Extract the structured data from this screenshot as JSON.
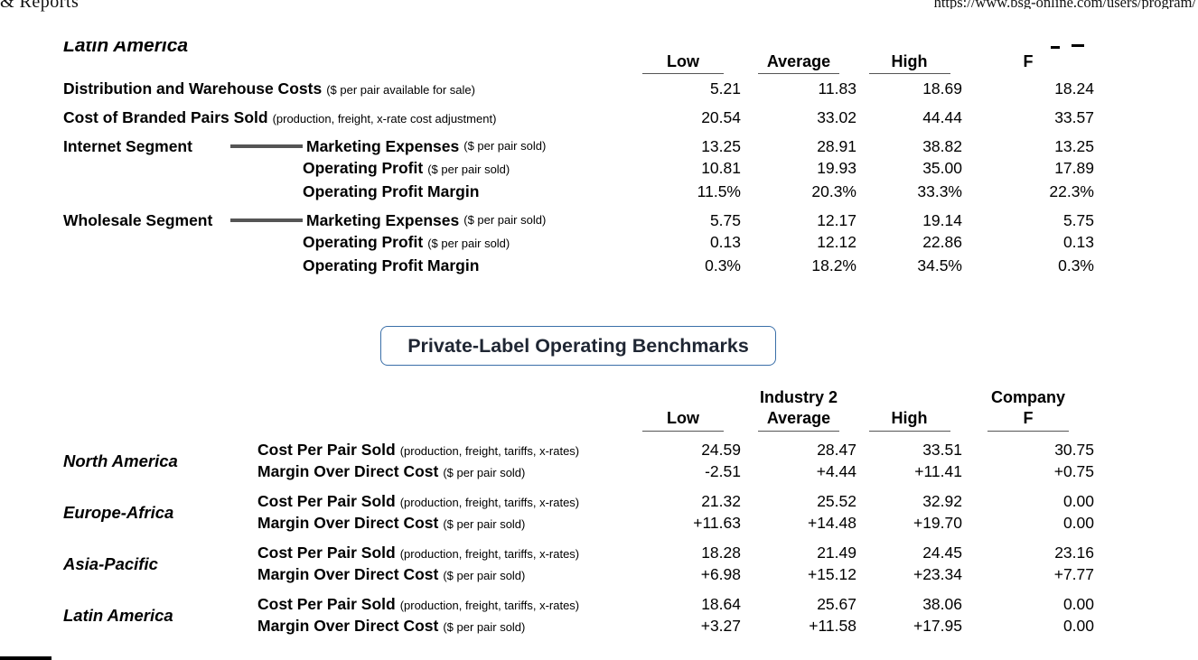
{
  "page_header": {
    "left_fragment": "& Reports",
    "right_fragment": "https://www.bsg-online.com/users/program/"
  },
  "colors": {
    "section_box_border": "#3a6fa8",
    "connector_line": "#555555"
  },
  "branded_benchmarks": {
    "region_title": "Latin America",
    "col_headers": {
      "low": "Low",
      "average": "Average",
      "high": "High",
      "company": "F"
    },
    "rows": [
      {
        "label": "Distribution and Warehouse Costs",
        "note": "($ per pair available for sale)",
        "low": "5.21",
        "average": "11.83",
        "high": "18.69",
        "company": "18.24"
      },
      {
        "label": "Cost of Branded Pairs Sold",
        "note": "(production, freight, x-rate cost adjustment)",
        "low": "20.54",
        "average": "33.02",
        "high": "44.44",
        "company": "33.57"
      },
      {
        "segment": "Internet Segment",
        "label": "Marketing Expenses",
        "note": "($ per pair sold)",
        "low": "13.25",
        "average": "28.91",
        "high": "38.82",
        "company": "13.25"
      },
      {
        "label": "Operating Profit",
        "note": "($ per pair sold)",
        "low": "10.81",
        "average": "19.93",
        "high": "35.00",
        "company": "17.89"
      },
      {
        "label": "Operating Profit Margin",
        "note": "",
        "low": "11.5%",
        "average": "20.3%",
        "high": "33.3%",
        "company": "22.3%"
      },
      {
        "segment": "Wholesale Segment",
        "label": "Marketing Expenses",
        "note": "($ per pair sold)",
        "low": "5.75",
        "average": "12.17",
        "high": "19.14",
        "company": "5.75"
      },
      {
        "label": "Operating Profit",
        "note": "($ per pair sold)",
        "low": "0.13",
        "average": "12.12",
        "high": "22.86",
        "company": "0.13"
      },
      {
        "label": "Operating Profit Margin",
        "note": "",
        "low": "0.3%",
        "average": "18.2%",
        "high": "34.5%",
        "company": "0.3%"
      }
    ]
  },
  "section_title": "Private-Label Operating Benchmarks",
  "private_label_benchmarks": {
    "industry_header": "Industry 2",
    "company_header": "Company",
    "col_headers": {
      "low": "Low",
      "average": "Average",
      "high": "High",
      "company": "F"
    },
    "row_labels": {
      "cost": {
        "label": "Cost Per Pair Sold",
        "note": "(production, freight, tariffs, x-rates)"
      },
      "margin": {
        "label": "Margin Over Direct Cost",
        "note": "($ per pair sold)"
      }
    },
    "regions": [
      {
        "name": "North America",
        "cost": {
          "low": "24.59",
          "average": "28.47",
          "high": "33.51",
          "company": "30.75"
        },
        "margin": {
          "low": "-2.51",
          "average": "+4.44",
          "high": "+11.41",
          "company": "+0.75"
        }
      },
      {
        "name": "Europe-Africa",
        "cost": {
          "low": "21.32",
          "average": "25.52",
          "high": "32.92",
          "company": "0.00"
        },
        "margin": {
          "low": "+11.63",
          "average": "+14.48",
          "high": "+19.70",
          "company": "0.00"
        }
      },
      {
        "name": "Asia-Pacific",
        "cost": {
          "low": "18.28",
          "average": "21.49",
          "high": "24.45",
          "company": "23.16"
        },
        "margin": {
          "low": "+6.98",
          "average": "+15.12",
          "high": "+23.34",
          "company": "+7.77"
        }
      },
      {
        "name": "Latin America",
        "cost": {
          "low": "18.64",
          "average": "25.67",
          "high": "38.06",
          "company": "0.00"
        },
        "margin": {
          "low": "+3.27",
          "average": "+11.58",
          "high": "+17.95",
          "company": "0.00"
        }
      }
    ]
  }
}
